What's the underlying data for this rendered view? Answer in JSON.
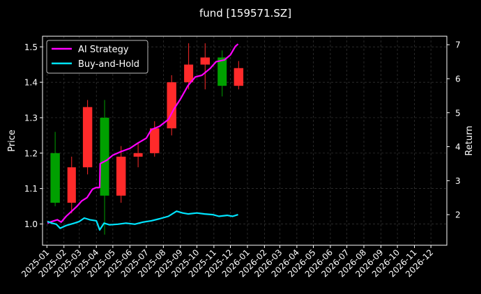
{
  "chart_data": {
    "type": "line",
    "title": "fund [159571.SZ]",
    "ylabel_left": "Price",
    "ylabel_right": "Return",
    "ylim_left": [
      0.94,
      1.53
    ],
    "ylim_right": [
      1.1,
      7.25
    ],
    "xlim": [
      "2024-12-24",
      "2026-12-30"
    ],
    "y_ticks_left": [
      "1.0",
      "1.1",
      "1.2",
      "1.3",
      "1.4",
      "1.5"
    ],
    "y_ticks_right": [
      "2",
      "3",
      "4",
      "5",
      "6",
      "7"
    ],
    "x_ticks": [
      "2025-01",
      "2025-02",
      "2025-03",
      "2025-04",
      "2025-05",
      "2025-06",
      "2025-07",
      "2025-08",
      "2025-09",
      "2025-10",
      "2025-11",
      "2025-12",
      "2026-01",
      "2026-02",
      "2026-03",
      "2026-04",
      "2026-05",
      "2026-06",
      "2026-07",
      "2026-08",
      "2026-09",
      "2026-10",
      "2026-11",
      "2026-12"
    ],
    "grid": true,
    "legend_position": "top-left",
    "colors": {
      "background": "#000000",
      "ai_strategy": "#ff00ff",
      "buy_and_hold": "#00e5ff",
      "candle_up": "#ff2a2a",
      "candle_down": "#00a000",
      "grid": "#3a3a3a"
    },
    "series": [
      {
        "name": "AI Strategy",
        "axis": "right",
        "points": [
          [
            "2025-01-02",
            1.75
          ],
          [
            "2025-01-10",
            1.8
          ],
          [
            "2025-01-20",
            1.85
          ],
          [
            "2025-01-27",
            1.78
          ],
          [
            "2025-02-05",
            1.95
          ],
          [
            "2025-02-15",
            2.1
          ],
          [
            "2025-02-25",
            2.25
          ],
          [
            "2025-03-05",
            2.4
          ],
          [
            "2025-03-15",
            2.5
          ],
          [
            "2025-03-25",
            2.75
          ],
          [
            "2025-04-01",
            2.8
          ],
          [
            "2025-04-07",
            2.8
          ],
          [
            "2025-04-08",
            3.5
          ],
          [
            "2025-04-20",
            3.6
          ],
          [
            "2025-05-01",
            3.75
          ],
          [
            "2025-05-15",
            3.85
          ],
          [
            "2025-06-01",
            3.95
          ],
          [
            "2025-06-15",
            4.1
          ],
          [
            "2025-07-01",
            4.25
          ],
          [
            "2025-07-10",
            4.5
          ],
          [
            "2025-07-25",
            4.6
          ],
          [
            "2025-08-10",
            4.8
          ],
          [
            "2025-08-20",
            5.1
          ],
          [
            "2025-09-01",
            5.4
          ],
          [
            "2025-09-15",
            5.8
          ],
          [
            "2025-09-28",
            6.05
          ],
          [
            "2025-10-10",
            6.1
          ],
          [
            "2025-10-25",
            6.3
          ],
          [
            "2025-11-05",
            6.5
          ],
          [
            "2025-11-20",
            6.55
          ],
          [
            "2025-12-01",
            6.7
          ],
          [
            "2025-12-10",
            6.95
          ],
          [
            "2025-12-15",
            7.02
          ]
        ]
      },
      {
        "name": "Buy-and-Hold",
        "axis": "right",
        "points": [
          [
            "2025-01-02",
            1.8
          ],
          [
            "2025-01-10",
            1.75
          ],
          [
            "2025-01-18",
            1.72
          ],
          [
            "2025-01-25",
            1.6
          ],
          [
            "2025-02-05",
            1.68
          ],
          [
            "2025-02-20",
            1.75
          ],
          [
            "2025-03-01",
            1.8
          ],
          [
            "2025-03-10",
            1.9
          ],
          [
            "2025-03-20",
            1.85
          ],
          [
            "2025-04-01",
            1.82
          ],
          [
            "2025-04-07",
            1.55
          ],
          [
            "2025-04-15",
            1.75
          ],
          [
            "2025-04-25",
            1.7
          ],
          [
            "2025-05-10",
            1.72
          ],
          [
            "2025-05-25",
            1.75
          ],
          [
            "2025-06-10",
            1.72
          ],
          [
            "2025-06-25",
            1.78
          ],
          [
            "2025-07-10",
            1.82
          ],
          [
            "2025-07-25",
            1.88
          ],
          [
            "2025-08-10",
            1.95
          ],
          [
            "2025-08-25",
            2.1
          ],
          [
            "2025-09-05",
            2.05
          ],
          [
            "2025-09-15",
            2.02
          ],
          [
            "2025-10-01",
            2.05
          ],
          [
            "2025-10-15",
            2.02
          ],
          [
            "2025-10-30",
            2.0
          ],
          [
            "2025-11-10",
            1.95
          ],
          [
            "2025-11-25",
            1.98
          ],
          [
            "2025-12-05",
            1.95
          ],
          [
            "2025-12-15",
            2.0
          ]
        ]
      }
    ],
    "candlesticks_monthly": [
      {
        "month": "2025-01",
        "open": 1.2,
        "high": 1.26,
        "low": 1.05,
        "close": 1.06
      },
      {
        "month": "2025-02",
        "open": 1.06,
        "high": 1.19,
        "low": 1.03,
        "close": 1.16
      },
      {
        "month": "2025-03",
        "open": 1.16,
        "high": 1.35,
        "low": 1.14,
        "close": 1.33
      },
      {
        "month": "2025-04",
        "open": 1.3,
        "high": 1.35,
        "low": 0.97,
        "close": 1.08
      },
      {
        "month": "2025-05",
        "open": 1.08,
        "high": 1.22,
        "low": 1.06,
        "close": 1.19
      },
      {
        "month": "2025-06",
        "open": 1.19,
        "high": 1.23,
        "low": 1.16,
        "close": 1.2
      },
      {
        "month": "2025-07",
        "open": 1.2,
        "high": 1.29,
        "low": 1.19,
        "close": 1.27
      },
      {
        "month": "2025-08",
        "open": 1.27,
        "high": 1.42,
        "low": 1.25,
        "close": 1.4
      },
      {
        "month": "2025-09",
        "open": 1.4,
        "high": 1.51,
        "low": 1.38,
        "close": 1.45
      },
      {
        "month": "2025-10",
        "open": 1.45,
        "high": 1.51,
        "low": 1.38,
        "close": 1.47
      },
      {
        "month": "2025-11",
        "open": 1.47,
        "high": 1.49,
        "low": 1.36,
        "close": 1.39
      },
      {
        "month": "2025-12",
        "open": 1.39,
        "high": 1.46,
        "low": 1.38,
        "close": 1.44
      }
    ]
  }
}
